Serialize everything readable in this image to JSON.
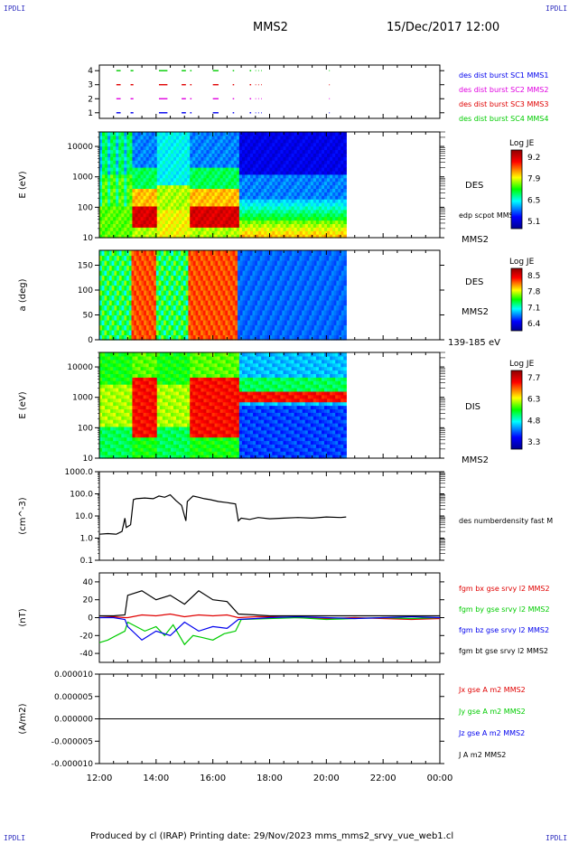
{
  "header": {
    "corner_left": "IPDLI",
    "corner_right": "IPDLI",
    "title": "MMS2",
    "date": "15/Dec/2017 12:00"
  },
  "footer": {
    "text": "Produced by cl (IRAP)   Printing date: 29/Nov/2023   mms_mms2_srvy_vue_web1.cl",
    "corner_left": "IPDLI",
    "corner_right": "IPDLI"
  },
  "colors": {
    "red": "#e00000",
    "green": "#00cc00",
    "blue": "#0000ee",
    "magenta": "#e000e0",
    "black": "#000000"
  },
  "chart_data": [
    {
      "type": "scatter",
      "id": "burst",
      "ylim": [
        0.6,
        4.4
      ],
      "yticks": [
        "1",
        "2",
        "3",
        "4"
      ],
      "legend": [
        {
          "text": "des dist burst SC1 MMS1",
          "color": "#0000ee"
        },
        {
          "text": "des dist burst SC2 MMS2",
          "color": "#e000e0"
        },
        {
          "text": "des dist burst SC3 MMS3",
          "color": "#e00000"
        },
        {
          "text": "des dist burst SC4 MMS4",
          "color": "#00cc00"
        }
      ]
    },
    {
      "type": "heatmap",
      "id": "des-energy",
      "ylabel": "E (eV)",
      "yscale": "log",
      "ylim": [
        10,
        30000
      ],
      "yticks": [
        "10",
        "100",
        "1000",
        "10000"
      ],
      "species": "DES",
      "probe": "MMS2",
      "note": "edp scpot MMS2",
      "colorbar": {
        "title": "Log JE",
        "ticks": [
          "9.2",
          "7.9",
          "6.5",
          "5.1"
        ]
      }
    },
    {
      "type": "heatmap",
      "id": "des-pitch",
      "ylabel": "a (deg)",
      "ylim": [
        0,
        180
      ],
      "yticks": [
        "0",
        "50",
        "100",
        "150"
      ],
      "species": "DES",
      "probe": "MMS2",
      "note": "139-185 eV",
      "colorbar": {
        "title": "Log JE",
        "ticks": [
          "8.5",
          "7.8",
          "7.1",
          "6.4"
        ]
      }
    },
    {
      "type": "heatmap",
      "id": "dis-energy",
      "ylabel": "E (eV)",
      "yscale": "log",
      "ylim": [
        10,
        30000
      ],
      "yticks": [
        "10",
        "100",
        "1000",
        "10000"
      ],
      "species": "DIS",
      "probe": "MMS2",
      "colorbar": {
        "title": "Log JE",
        "ticks": [
          "7.7",
          "6.3",
          "4.8",
          "3.3"
        ]
      }
    },
    {
      "type": "line",
      "id": "density",
      "ylabel": "(cm^-3)",
      "yscale": "log",
      "ylim": [
        0.1,
        1000
      ],
      "yticks": [
        "0.1",
        "1.0",
        "10.0",
        "100.0",
        "1000.0"
      ],
      "series": [
        {
          "name": "des numberdensity fast M",
          "color": "#000000",
          "x": [
            12.0,
            12.3,
            12.6,
            12.8,
            12.9,
            12.95,
            13.1,
            13.2,
            13.3,
            13.6,
            13.9,
            14.1,
            14.3,
            14.5,
            14.7,
            14.9,
            15.05,
            15.1,
            15.3,
            15.5,
            15.7,
            15.9,
            16.2,
            16.5,
            16.8,
            16.9,
            17.0,
            17.3,
            17.6,
            18.0,
            18.5,
            19.0,
            19.5,
            20.0,
            20.5,
            20.7
          ],
          "y": [
            1.5,
            1.6,
            1.5,
            2.0,
            8.0,
            3.0,
            4.0,
            55.0,
            60.0,
            65.0,
            60.0,
            80.0,
            70.0,
            90.0,
            50.0,
            30.0,
            6.0,
            45.0,
            80.0,
            70.0,
            60.0,
            55.0,
            45.0,
            40.0,
            35.0,
            6.0,
            8.0,
            7.0,
            8.5,
            7.5,
            8.0,
            8.5,
            8.0,
            9.0,
            8.5,
            9.0
          ]
        }
      ]
    },
    {
      "type": "line",
      "id": "magnetic",
      "ylabel": "(nT)",
      "ylim": [
        -50,
        50
      ],
      "yticks": [
        "-40",
        "-20",
        "0",
        "20",
        "40"
      ],
      "series": [
        {
          "name": "fgm bx gse srvy l2 MMS2",
          "color": "#e00000",
          "x": [
            12.0,
            12.5,
            12.9,
            13.0,
            13.5,
            14.0,
            14.5,
            15.0,
            15.5,
            16.0,
            16.5,
            16.9,
            17.5,
            18.0,
            19.0,
            20.0,
            21.0,
            22.0,
            23.0,
            24.0
          ],
          "y": [
            0,
            1,
            0,
            0,
            3,
            2,
            4,
            1,
            3,
            2,
            3,
            0,
            1,
            1,
            0,
            -1,
            0,
            -1,
            -2,
            -1
          ]
        },
        {
          "name": "fgm by gse srvy l2 MMS2",
          "color": "#00cc00",
          "x": [
            12.0,
            12.3,
            12.6,
            12.9,
            13.0,
            13.3,
            13.6,
            14.0,
            14.3,
            14.6,
            15.0,
            15.3,
            15.6,
            16.0,
            16.4,
            16.8,
            17.0,
            18.0,
            19.0,
            20.0,
            21.0,
            22.0,
            23.0,
            24.0
          ],
          "y": [
            -28,
            -25,
            -20,
            -15,
            -5,
            -10,
            -15,
            -10,
            -20,
            -8,
            -30,
            -20,
            -22,
            -25,
            -18,
            -15,
            -2,
            -1,
            0,
            -2,
            -1,
            0,
            -1,
            0
          ]
        },
        {
          "name": "fgm bz gse srvy l2 MMS2",
          "color": "#0000ee",
          "x": [
            12.0,
            12.5,
            12.9,
            13.0,
            13.5,
            14.0,
            14.5,
            15.0,
            15.5,
            16.0,
            16.5,
            16.9,
            17.5,
            18.0,
            19.0,
            20.0,
            21.0,
            22.0,
            23.0,
            24.0
          ],
          "y": [
            0,
            0,
            -2,
            -10,
            -25,
            -15,
            -20,
            -5,
            -15,
            -10,
            -12,
            -2,
            -1,
            0,
            1,
            0,
            -1,
            0,
            1,
            0
          ]
        },
        {
          "name": "fgm bt gse srvy l2 MMS2",
          "color": "#000000",
          "x": [
            12.0,
            12.5,
            12.9,
            13.0,
            13.5,
            14.0,
            14.5,
            15.0,
            15.5,
            16.0,
            16.5,
            16.9,
            17.5,
            18.0,
            19.0,
            20.0,
            21.0,
            22.0,
            23.0,
            24.0
          ],
          "y": [
            2,
            2,
            3,
            25,
            30,
            20,
            25,
            15,
            30,
            20,
            18,
            4,
            3,
            2,
            2,
            2,
            2,
            2,
            2,
            2
          ]
        }
      ]
    },
    {
      "type": "line",
      "id": "current",
      "ylabel": "(A/m2)",
      "ylim": [
        -1e-05,
        1e-05
      ],
      "yticks": [
        "-0.000010",
        "-0.000005",
        "0.000000",
        "0.000005",
        "0.000010"
      ],
      "xlim": [
        12,
        24
      ],
      "xticks": [
        "12:00",
        "14:00",
        "16:00",
        "18:00",
        "20:00",
        "22:00",
        "00:00"
      ],
      "series": [
        {
          "name": "Jx gse A m2 MMS2",
          "color": "#e00000"
        },
        {
          "name": "Jy gse A m2 MMS2",
          "color": "#00cc00"
        },
        {
          "name": "Jz gse A m2 MMS2",
          "color": "#0000ee"
        },
        {
          "name": "J A m2 MMS2",
          "color": "#000000"
        }
      ]
    }
  ]
}
